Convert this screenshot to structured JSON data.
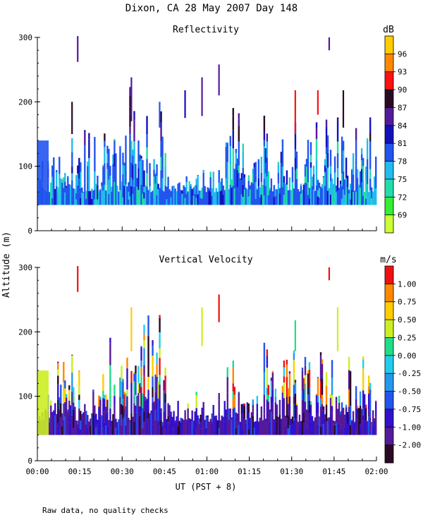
{
  "figure": {
    "title": "Dixon, CA 28 May 2007  Day 148",
    "footnote": "Raw data, no quality checks",
    "shared_ylabel": "Altitude (m)",
    "shared_xlabel": "UT  (PST + 8)",
    "x_tick_labels": [
      "00:00",
      "00:15",
      "00:30",
      "00:45",
      "01:00",
      "01:15",
      "01:30",
      "01:45",
      "02:00"
    ],
    "y_tick_labels": [
      "0",
      "100",
      "200",
      "300"
    ]
  },
  "chart_data": [
    {
      "type": "heatmap",
      "title": "Reflectivity",
      "colorbar_label": "dB",
      "colorbar_ticks": [
        "69",
        "72",
        "75",
        "78",
        "81",
        "84",
        "87",
        "90",
        "93",
        "96"
      ],
      "colorbar_colors": [
        "#ccff33",
        "#33ee33",
        "#22ddaa",
        "#22bbee",
        "#2255ee",
        "#1111bb",
        "#551a99",
        "#2a0a22",
        "#ff1111",
        "#ff8800",
        "#ffcc00"
      ],
      "xlim": [
        0,
        120
      ],
      "ylim": [
        0,
        300
      ],
      "gate_floor_m": 40,
      "events": [
        {
          "t": 14,
          "ymin": 262,
          "ymax": 302,
          "level": "84"
        },
        {
          "t": 103,
          "ymin": 280,
          "ymax": 300,
          "level": "84"
        },
        {
          "t": 12,
          "ymin": 150,
          "ymax": 200,
          "level": "87"
        },
        {
          "t": 33,
          "ymin": 170,
          "ymax": 238,
          "level": "84"
        },
        {
          "t": 43,
          "ymin": 160,
          "ymax": 200,
          "level": "78"
        },
        {
          "t": 52,
          "ymin": 175,
          "ymax": 218,
          "level": "81"
        },
        {
          "t": 58,
          "ymin": 178,
          "ymax": 238,
          "level": "84"
        },
        {
          "t": 64,
          "ymin": 210,
          "ymax": 258,
          "level": "84"
        },
        {
          "t": 91,
          "ymin": 150,
          "ymax": 218,
          "level": "90"
        },
        {
          "t": 99,
          "ymin": 180,
          "ymax": 218,
          "level": "90"
        },
        {
          "t": 108,
          "ymin": 160,
          "ymax": 218,
          "level": "87"
        }
      ],
      "activity": [
        {
          "t_start": 0,
          "t_end": 6,
          "level_top_m": 140
        },
        {
          "t_start": 6,
          "t_end": 30,
          "level_top_m": 200
        },
        {
          "t_start": 30,
          "t_end": 46,
          "level_top_m": 240
        },
        {
          "t_start": 46,
          "t_end": 66,
          "level_top_m": 110
        },
        {
          "t_start": 66,
          "t_end": 120,
          "level_top_m": 220
        }
      ]
    },
    {
      "type": "heatmap",
      "title": "Vertical Velocity",
      "colorbar_label": "m/s",
      "colorbar_ticks": [
        "-2.00",
        "-1.00",
        "-0.75",
        "-0.50",
        "-0.25",
        "0.00",
        "0.25",
        "0.50",
        "0.75",
        "1.00"
      ],
      "colorbar_colors": [
        "#2a0a22",
        "#551a99",
        "#3311cc",
        "#2255ee",
        "#2299ee",
        "#22ccee",
        "#22dd88",
        "#ccee22",
        "#ffcc00",
        "#ff8800",
        "#ee1111"
      ],
      "xlim": [
        0,
        120
      ],
      "ylim": [
        0,
        300
      ],
      "gate_floor_m": 40,
      "events": [
        {
          "t": 14,
          "ymin": 262,
          "ymax": 302,
          "level": "1.00"
        },
        {
          "t": 103,
          "ymin": 280,
          "ymax": 300,
          "level": "1.00"
        },
        {
          "t": 64,
          "ymin": 215,
          "ymax": 258,
          "level": "1.00"
        },
        {
          "t": 33,
          "ymin": 170,
          "ymax": 238,
          "level": "0.50"
        },
        {
          "t": 58,
          "ymin": 178,
          "ymax": 238,
          "level": "0.25"
        },
        {
          "t": 91,
          "ymin": 170,
          "ymax": 218,
          "level": "0.00"
        },
        {
          "t": 106,
          "ymin": 170,
          "ymax": 238,
          "level": "0.25"
        }
      ],
      "activity": [
        {
          "t_start": 0,
          "t_end": 6,
          "level_top_m": 140
        },
        {
          "t_start": 6,
          "t_end": 30,
          "level_top_m": 200
        },
        {
          "t_start": 30,
          "t_end": 46,
          "level_top_m": 240
        },
        {
          "t_start": 46,
          "t_end": 66,
          "level_top_m": 110
        },
        {
          "t_start": 66,
          "t_end": 120,
          "level_top_m": 220
        }
      ]
    }
  ]
}
